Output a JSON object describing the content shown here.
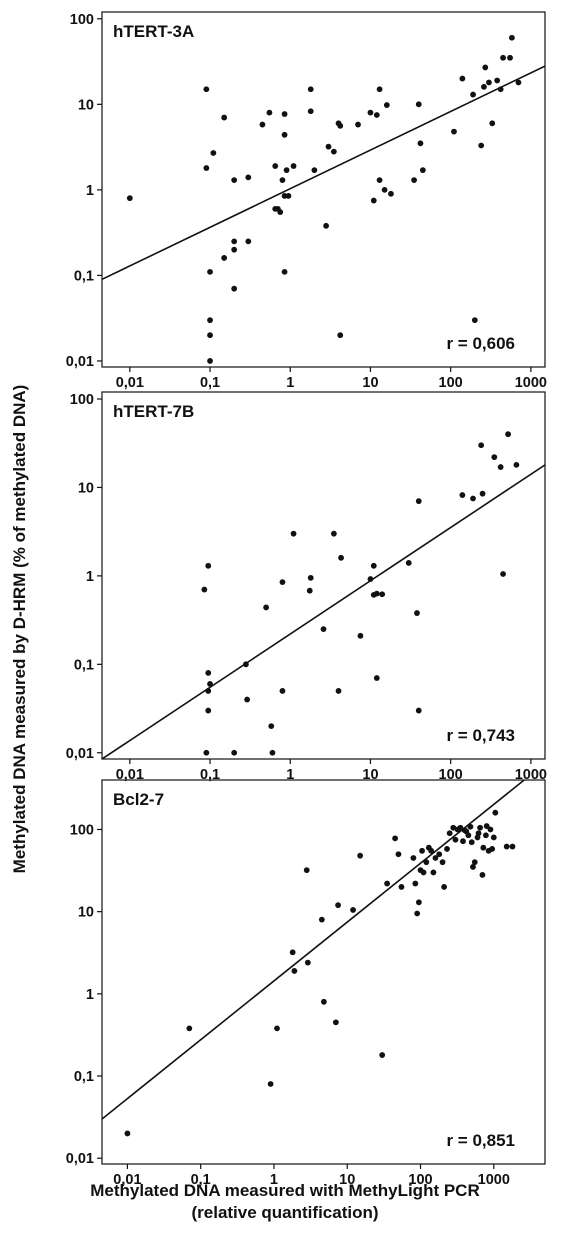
{
  "figure": {
    "ylabel": "Methylated  DNA measured by D-HRM (% of methylated DNA)",
    "xlabel_line1": "Methylated DNA measured with MethyLight PCR",
    "xlabel_line2": "(relative quantification)"
  },
  "chart_data": [
    {
      "type": "scatter",
      "title": "hTERT-3A",
      "annotation": "r = 0,606",
      "x_scale": "log",
      "y_scale": "log",
      "xlim": [
        0.0045,
        1500
      ],
      "ylim": [
        0.0085,
        120
      ],
      "xticks": [
        0.01,
        0.1,
        1,
        10,
        100,
        1000
      ],
      "xtick_labels": [
        "0,01",
        "0,1",
        "1",
        "10",
        "100",
        "1000"
      ],
      "yticks": [
        0.01,
        0.1,
        1,
        10,
        100
      ],
      "ytick_labels": [
        "0,01",
        "0,1",
        "1",
        "10",
        "100"
      ],
      "grid": false,
      "regression_line": {
        "x": [
          0.0045,
          1500
        ],
        "y": [
          0.09,
          28
        ]
      },
      "points": [
        [
          0.01,
          0.8
        ],
        [
          0.09,
          15
        ],
        [
          0.09,
          1.8
        ],
        [
          0.1,
          0.11
        ],
        [
          0.1,
          0.03
        ],
        [
          0.1,
          0.02
        ],
        [
          0.1,
          0.01
        ],
        [
          0.11,
          2.7
        ],
        [
          0.15,
          7
        ],
        [
          0.15,
          0.16
        ],
        [
          0.2,
          1.3
        ],
        [
          0.2,
          0.25
        ],
        [
          0.2,
          0.2
        ],
        [
          0.2,
          0.07
        ],
        [
          0.3,
          1.4
        ],
        [
          0.3,
          0.25
        ],
        [
          0.45,
          5.8
        ],
        [
          0.55,
          8
        ],
        [
          0.65,
          1.9
        ],
        [
          0.65,
          0.6
        ],
        [
          0.7,
          0.6
        ],
        [
          0.75,
          0.55
        ],
        [
          0.8,
          1.3
        ],
        [
          0.85,
          7.7
        ],
        [
          0.85,
          4.4
        ],
        [
          0.85,
          0.85
        ],
        [
          0.85,
          0.11
        ],
        [
          0.9,
          1.7
        ],
        [
          0.95,
          0.85
        ],
        [
          1.1,
          1.9
        ],
        [
          1.8,
          15
        ],
        [
          1.8,
          8.3
        ],
        [
          2,
          1.7
        ],
        [
          2.8,
          0.38
        ],
        [
          3,
          3.2
        ],
        [
          3.5,
          2.8
        ],
        [
          4,
          6
        ],
        [
          4.2,
          5.6
        ],
        [
          4.2,
          0.02
        ],
        [
          7,
          5.8
        ],
        [
          10,
          8
        ],
        [
          11,
          0.75
        ],
        [
          12,
          7.5
        ],
        [
          13,
          15
        ],
        [
          13,
          1.3
        ],
        [
          15,
          1
        ],
        [
          16,
          9.8
        ],
        [
          18,
          0.9
        ],
        [
          35,
          1.3
        ],
        [
          40,
          10
        ],
        [
          42,
          3.5
        ],
        [
          45,
          1.7
        ],
        [
          110,
          4.8
        ],
        [
          140,
          20
        ],
        [
          190,
          13
        ],
        [
          200,
          0.03
        ],
        [
          240,
          3.3
        ],
        [
          260,
          16
        ],
        [
          270,
          27
        ],
        [
          300,
          18
        ],
        [
          330,
          6
        ],
        [
          380,
          19
        ],
        [
          420,
          15
        ],
        [
          450,
          35
        ],
        [
          550,
          35
        ],
        [
          580,
          60
        ],
        [
          700,
          18
        ]
      ]
    },
    {
      "type": "scatter",
      "title": "hTERT-7B",
      "annotation": "r = 0,743",
      "x_scale": "log",
      "y_scale": "log",
      "xlim": [
        0.0045,
        1500
      ],
      "ylim": [
        0.0085,
        120
      ],
      "xticks": [
        0.01,
        0.1,
        1,
        10,
        100,
        1000
      ],
      "xtick_labels": [
        "0,01",
        "0,1",
        "1",
        "10",
        "100",
        "1000"
      ],
      "yticks": [
        0.01,
        0.1,
        1,
        10,
        100
      ],
      "ytick_labels": [
        "0,01",
        "0,1",
        "1",
        "10",
        "100"
      ],
      "grid": false,
      "regression_line": {
        "x": [
          0.0045,
          1500
        ],
        "y": [
          0.0085,
          18
        ]
      },
      "points": [
        [
          0.085,
          0.7
        ],
        [
          0.09,
          0.01
        ],
        [
          0.095,
          1.3
        ],
        [
          0.095,
          0.08
        ],
        [
          0.095,
          0.05
        ],
        [
          0.095,
          0.03
        ],
        [
          0.1,
          0.06
        ],
        [
          0.2,
          0.01
        ],
        [
          0.28,
          0.1
        ],
        [
          0.29,
          0.04
        ],
        [
          0.5,
          0.44
        ],
        [
          0.58,
          0.02
        ],
        [
          0.6,
          0.01
        ],
        [
          0.8,
          0.85
        ],
        [
          0.8,
          0.05
        ],
        [
          1.1,
          3
        ],
        [
          1.75,
          0.68
        ],
        [
          1.8,
          0.95
        ],
        [
          2.6,
          0.25
        ],
        [
          3.5,
          3
        ],
        [
          4,
          0.05
        ],
        [
          4.3,
          1.6
        ],
        [
          7.5,
          0.21
        ],
        [
          10,
          0.92
        ],
        [
          11,
          1.3
        ],
        [
          11,
          0.61
        ],
        [
          12,
          0.07
        ],
        [
          12,
          0.63
        ],
        [
          14,
          0.62
        ],
        [
          30,
          1.4
        ],
        [
          38,
          0.38
        ],
        [
          40,
          7
        ],
        [
          40,
          0.03
        ],
        [
          140,
          8.2
        ],
        [
          190,
          7.5
        ],
        [
          240,
          30
        ],
        [
          250,
          8.5
        ],
        [
          350,
          22
        ],
        [
          420,
          17
        ],
        [
          450,
          1.05
        ],
        [
          520,
          40
        ],
        [
          660,
          18
        ]
      ]
    },
    {
      "type": "scatter",
      "title": "Bcl2-7",
      "annotation": "r = 0,851",
      "x_scale": "log",
      "y_scale": "log",
      "xlim": [
        0.0045,
        5000
      ],
      "ylim": [
        0.0085,
        400
      ],
      "xticks": [
        0.01,
        0.1,
        1,
        10,
        100,
        1000
      ],
      "xtick_labels": [
        "0,01",
        "0,1",
        "1",
        "10",
        "100",
        "1000"
      ],
      "yticks": [
        0.01,
        0.1,
        1,
        10,
        100
      ],
      "ytick_labels": [
        "0,01",
        "0,1",
        "1",
        "10",
        "100"
      ],
      "grid": false,
      "regression_line": {
        "x": [
          0.0045,
          2600
        ],
        "y": [
          0.03,
          400
        ]
      },
      "points": [
        [
          0.01,
          0.02
        ],
        [
          0.07,
          0.38
        ],
        [
          0.9,
          0.08
        ],
        [
          1.1,
          0.38
        ],
        [
          1.8,
          3.2
        ],
        [
          1.9,
          1.9
        ],
        [
          2.8,
          32
        ],
        [
          2.9,
          2.4
        ],
        [
          4.5,
          8
        ],
        [
          4.8,
          0.8
        ],
        [
          7,
          0.45
        ],
        [
          7.5,
          12
        ],
        [
          12,
          10.5
        ],
        [
          15,
          48
        ],
        [
          30,
          0.18
        ],
        [
          35,
          22
        ],
        [
          45,
          78
        ],
        [
          50,
          50
        ],
        [
          55,
          20
        ],
        [
          80,
          45
        ],
        [
          85,
          22
        ],
        [
          90,
          9.5
        ],
        [
          95,
          13
        ],
        [
          100,
          32
        ],
        [
          105,
          55
        ],
        [
          110,
          30
        ],
        [
          120,
          40
        ],
        [
          130,
          60
        ],
        [
          140,
          55
        ],
        [
          150,
          30
        ],
        [
          160,
          45
        ],
        [
          180,
          50
        ],
        [
          200,
          40
        ],
        [
          210,
          20
        ],
        [
          230,
          58
        ],
        [
          250,
          90
        ],
        [
          280,
          105
        ],
        [
          300,
          75
        ],
        [
          320,
          100
        ],
        [
          350,
          105
        ],
        [
          380,
          72
        ],
        [
          400,
          98
        ],
        [
          420,
          95
        ],
        [
          450,
          85
        ],
        [
          480,
          108
        ],
        [
          500,
          70
        ],
        [
          520,
          35
        ],
        [
          550,
          40
        ],
        [
          600,
          80
        ],
        [
          620,
          90
        ],
        [
          650,
          105
        ],
        [
          700,
          28
        ],
        [
          720,
          60
        ],
        [
          780,
          85
        ],
        [
          800,
          110
        ],
        [
          850,
          55
        ],
        [
          900,
          100
        ],
        [
          950,
          58
        ],
        [
          1000,
          80
        ],
        [
          1050,
          160
        ],
        [
          1500,
          62
        ],
        [
          1800,
          62
        ]
      ]
    }
  ]
}
